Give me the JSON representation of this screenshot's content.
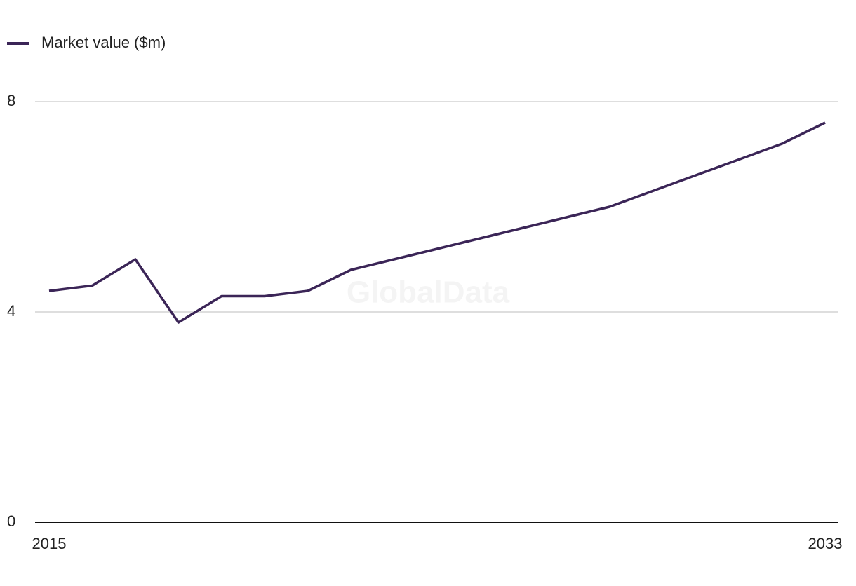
{
  "chart_data": {
    "type": "line",
    "watermark": "GlobalData",
    "x": [
      2015,
      2016,
      2017,
      2018,
      2019,
      2020,
      2021,
      2022,
      2023,
      2024,
      2025,
      2026,
      2027,
      2028,
      2029,
      2030,
      2031,
      2032,
      2033
    ],
    "series": [
      {
        "name": "Market value ($m)",
        "color": "#3b2557",
        "values": [
          4.4,
          4.5,
          5.0,
          3.8,
          4.3,
          4.3,
          4.4,
          4.8,
          5.0,
          5.2,
          5.4,
          5.6,
          5.8,
          6.0,
          6.3,
          6.6,
          6.9,
          7.2,
          7.6
        ]
      }
    ],
    "xlim": [
      2015,
      2033
    ],
    "xticks": [
      2015,
      2033
    ],
    "ylim": [
      0,
      8
    ],
    "yticks": [
      0,
      4,
      8
    ],
    "grid": true
  }
}
